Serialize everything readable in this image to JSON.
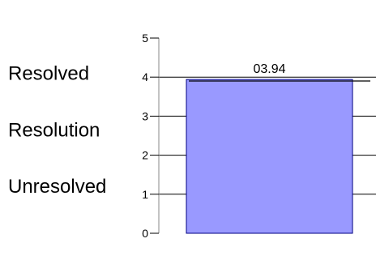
{
  "chart_data": {
    "type": "bar",
    "title": "",
    "xlabel": "",
    "ylabel": "",
    "ylim": [
      0,
      5
    ],
    "y_ticks": [
      0,
      1,
      2,
      3,
      4,
      5
    ],
    "grid": true,
    "gridlines_at": [
      1,
      2,
      3,
      4
    ],
    "axis_side_labels": [
      {
        "text": "Resolved",
        "y": 4.1
      },
      {
        "text": "Resolution",
        "y": 2.65
      },
      {
        "text": "Unresolved",
        "y": 1.2
      }
    ],
    "series": [
      {
        "values": [
          3.94
        ],
        "data_labels": [
          "03.94"
        ]
      }
    ],
    "reference_line": {
      "value": 3.9
    },
    "colors": {
      "bar_fill": "#9999ff",
      "bar_stroke": "#000080",
      "grid": "#000000",
      "axis": "#888888"
    }
  }
}
